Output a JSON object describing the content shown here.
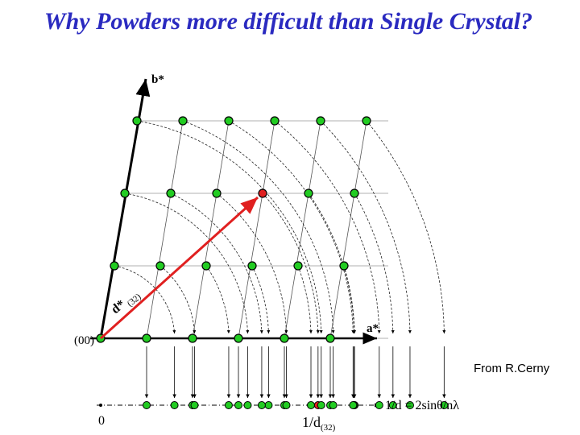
{
  "header": {
    "title": "Why Powders more difficult than Single Crystal?"
  },
  "labels": {
    "b_axis": "b*",
    "a_axis": "a*",
    "origin": "(00)",
    "vector": {
      "main": "d*",
      "sub": "(32)"
    },
    "credit": "From R.Cerny",
    "formula": "1/d = 2sinθ/nλ",
    "zero": "0",
    "bottom": {
      "main": "1/d",
      "sub": "(32)"
    }
  }
}
